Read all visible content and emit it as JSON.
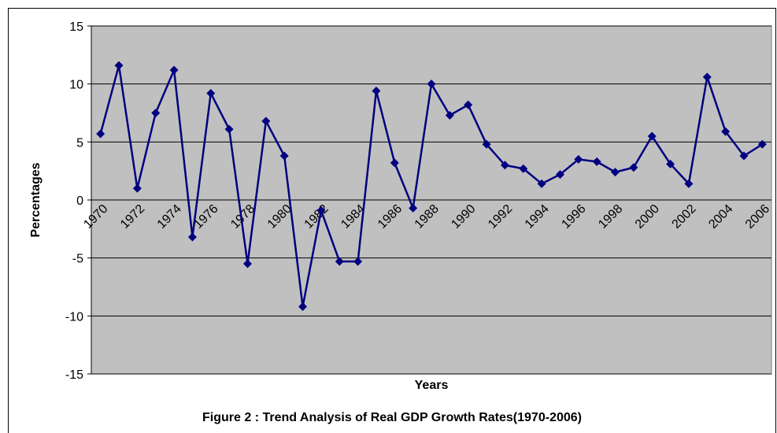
{
  "chart_data": {
    "type": "line",
    "title": "Figure 2 : Trend Analysis of Real GDP Growth Rates(1970-2006)",
    "x_label": "Years",
    "y_label": "Percentages",
    "categories": [
      "1970",
      null,
      "1972",
      null,
      "1974",
      null,
      "1976",
      null,
      "1978",
      null,
      "1980",
      null,
      "1982",
      null,
      "1984",
      null,
      "1986",
      null,
      "1988",
      null,
      "1990",
      null,
      "1992",
      null,
      "1994",
      null,
      "1996",
      null,
      "1998",
      null,
      "2000",
      null,
      "2002",
      null,
      "2004",
      null,
      "2006"
    ],
    "series": [
      {
        "color": "#000080",
        "values": [
          5.7,
          11.6,
          1.0,
          7.5,
          11.2,
          -3.2,
          9.2,
          6.1,
          -5.5,
          6.8,
          3.8,
          -9.2,
          -0.9,
          -5.3,
          -5.3,
          9.4,
          3.2,
          -0.7,
          10.0,
          7.3,
          8.2,
          4.8,
          3.0,
          2.7,
          1.4,
          2.2,
          3.5,
          3.3,
          2.4,
          2.8,
          5.5,
          3.1,
          1.4,
          10.6,
          5.9,
          3.8,
          4.8
        ]
      }
    ],
    "ylim": [
      -15,
      15
    ],
    "yticks": [
      -15,
      -10,
      -5,
      0,
      5,
      10,
      15
    ],
    "grid": true,
    "plot_background": "#c0c0c0"
  }
}
